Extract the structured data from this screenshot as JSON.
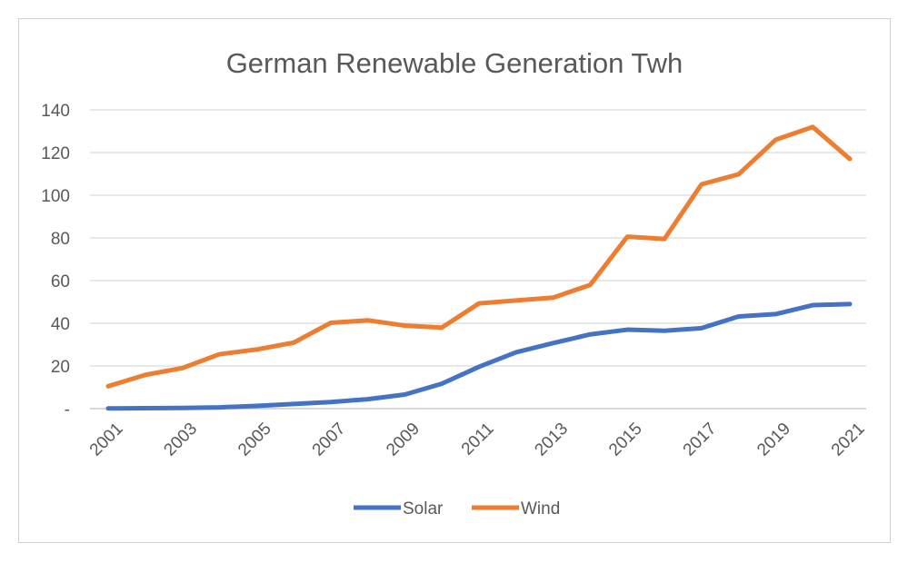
{
  "chart_data": {
    "type": "line",
    "title": "German Renewable Generation Twh",
    "xlabel": "",
    "ylabel": "",
    "ylim": [
      0,
      140
    ],
    "y_ticks": [
      0,
      20,
      40,
      60,
      80,
      100,
      120,
      140
    ],
    "y_tick_labels": [
      "-",
      "20",
      "40",
      "60",
      "80",
      "100",
      "120",
      "140"
    ],
    "x": [
      2001,
      2002,
      2003,
      2004,
      2005,
      2006,
      2007,
      2008,
      2009,
      2010,
      2011,
      2012,
      2013,
      2014,
      2015,
      2016,
      2017,
      2018,
      2019,
      2020,
      2021
    ],
    "x_tick_labels": [
      "2001",
      "2003",
      "2005",
      "2007",
      "2009",
      "2011",
      "2013",
      "2015",
      "2017",
      "2019",
      "2021"
    ],
    "grid": "horizontal",
    "legend": "bottom",
    "series": [
      {
        "name": "Solar",
        "color": "#4472c4",
        "values": [
          0.1,
          0.2,
          0.3,
          0.6,
          1.3,
          2.2,
          3.1,
          4.4,
          6.6,
          11.7,
          19.6,
          26.4,
          30.7,
          34.8,
          37.0,
          36.5,
          37.7,
          43.2,
          44.3,
          48.5,
          49.0
        ]
      },
      {
        "name": "Wind",
        "color": "#ed7d31",
        "values": [
          10.5,
          15.8,
          19.0,
          25.5,
          27.7,
          30.9,
          40.2,
          41.4,
          38.9,
          38.0,
          49.3,
          50.7,
          52.0,
          58.0,
          80.6,
          79.5,
          105.1,
          109.8,
          126.0,
          132.0,
          117.0
        ]
      }
    ]
  }
}
